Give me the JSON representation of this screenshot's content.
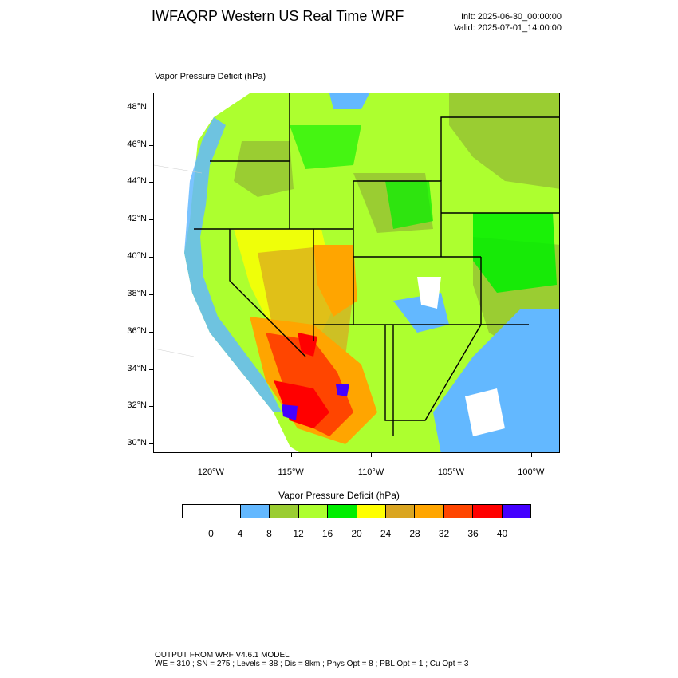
{
  "header": {
    "title": "IWFAQRP Western US Real Time WRF",
    "init": "Init: 2025-06-30_00:00:00",
    "valid": "Valid: 2025-07-01_14:00:00"
  },
  "plot": {
    "field_label": "Vapor Pressure Deficit   (hPa)"
  },
  "map": {
    "lat_labels": [
      "48°N",
      "46°N",
      "44°N",
      "42°N",
      "40°N",
      "38°N",
      "36°N",
      "34°N",
      "32°N",
      "30°N"
    ],
    "lon_labels": [
      "120°W",
      "115°W",
      "110°W",
      "105°W",
      "100°W"
    ],
    "lat_range": [
      29.5,
      48.8
    ],
    "lon_range": [
      -123.6,
      -98.2
    ]
  },
  "colorbar": {
    "title": "Vapor Pressure Deficit  (hPa)",
    "levels": [
      "0",
      "4",
      "8",
      "12",
      "16",
      "20",
      "24",
      "28",
      "32",
      "36",
      "40"
    ],
    "colors": [
      "#ffffff",
      "#ffffff",
      "#63b8ff",
      "#9acd32",
      "#adff2f",
      "#00ee00",
      "#ffff00",
      "#daa520",
      "#ffa500",
      "#ff4500",
      "#ff0000",
      "#4400ff"
    ]
  },
  "footer": {
    "line1": "OUTPUT FROM WRF V4.6.1 MODEL",
    "line2": "WE = 310 ; SN = 275 ; Levels = 38 ; Dis = 8km ; Phys Opt = 8 ; PBL Opt = 1 ; Cu Opt = 3"
  }
}
